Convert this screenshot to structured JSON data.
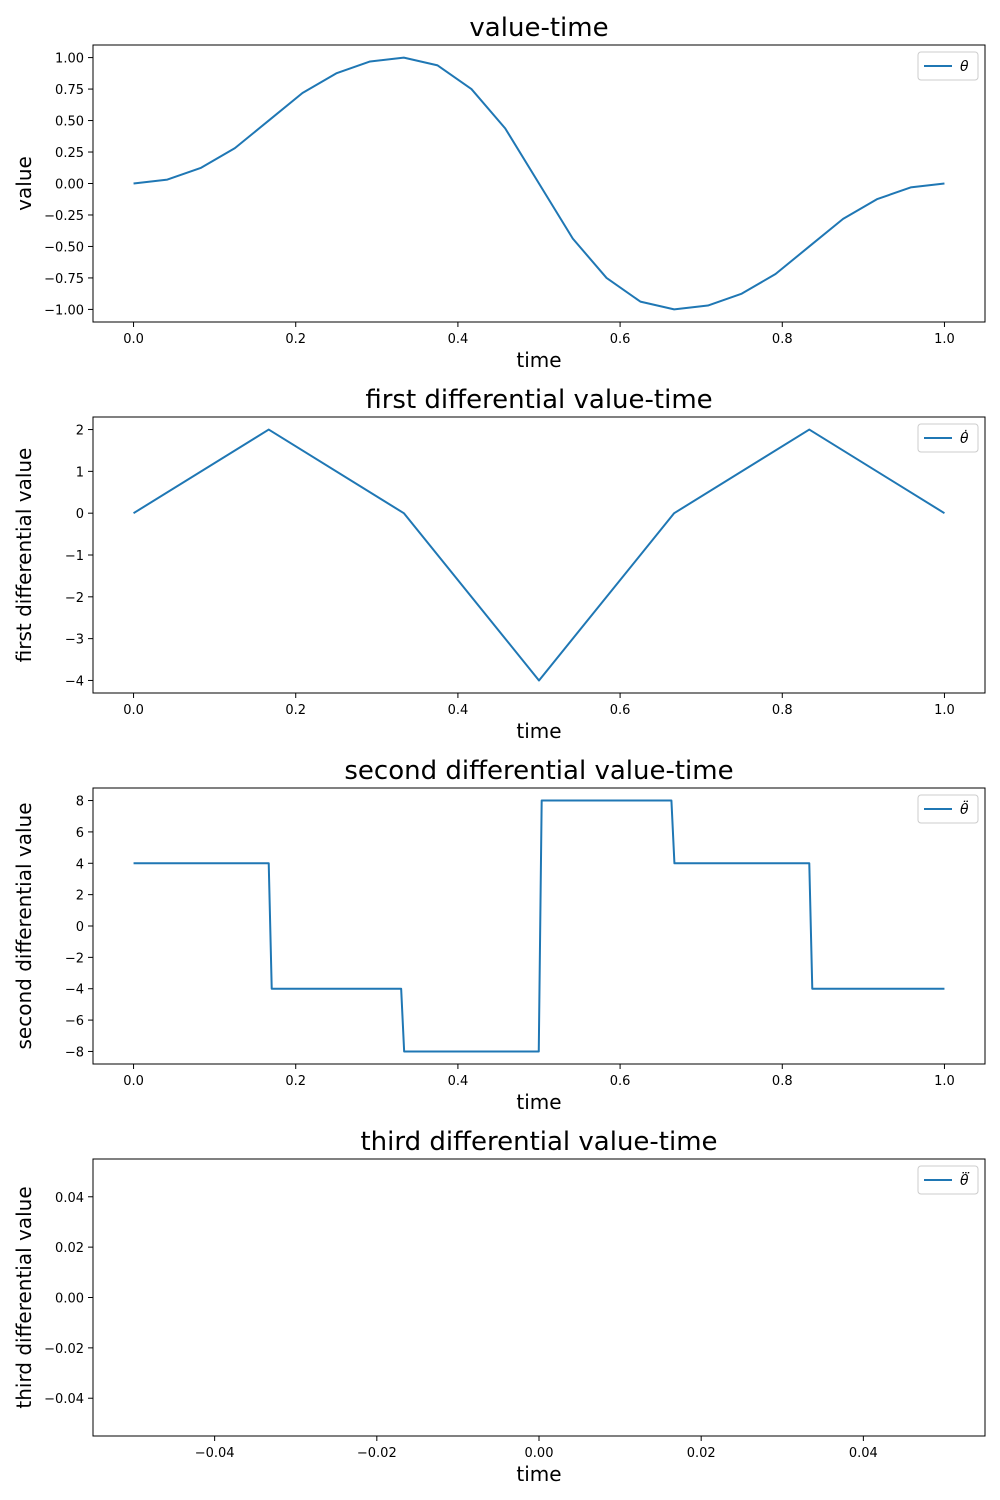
{
  "chart_data": [
    {
      "type": "line",
      "title": "value-time",
      "xlabel": "time",
      "ylabel": "value",
      "xlim": [
        -0.05,
        1.05
      ],
      "ylim": [
        -1.1,
        1.1
      ],
      "xticks": [
        0.0,
        0.2,
        0.4,
        0.6,
        0.8,
        1.0
      ],
      "xtick_labels": [
        "0.0",
        "0.2",
        "0.4",
        "0.6",
        "0.8",
        "1.0"
      ],
      "yticks": [
        1.0,
        0.75,
        0.5,
        0.25,
        0.0,
        -0.25,
        -0.5,
        -0.75,
        -1.0
      ],
      "ytick_labels": [
        "1.00",
        "0.75",
        "0.50",
        "0.25",
        "0.00",
        "−0.25",
        "−0.50",
        "−0.75",
        "−1.00"
      ],
      "legend_position": "top-right",
      "series": [
        {
          "name": "θ",
          "color": "#1f77b4",
          "x": [
            0,
            0.0417,
            0.0833,
            0.125,
            0.1667,
            0.2083,
            0.25,
            0.2917,
            0.3333,
            0.375,
            0.4167,
            0.4583,
            0.5,
            0.5417,
            0.5833,
            0.625,
            0.6667,
            0.7083,
            0.75,
            0.7917,
            0.8333,
            0.875,
            0.9167,
            0.9583,
            1.0
          ],
          "y": [
            0,
            0.031,
            0.125,
            0.281,
            0.5,
            0.719,
            0.875,
            0.969,
            1.0,
            0.938,
            0.75,
            0.438,
            0,
            -0.438,
            -0.75,
            -0.938,
            -1.0,
            -0.969,
            -0.875,
            -0.719,
            -0.5,
            -0.281,
            -0.125,
            -0.031,
            0
          ]
        }
      ]
    },
    {
      "type": "line",
      "title": "first differential value-time",
      "xlabel": "time",
      "ylabel": "first differential value",
      "xlim": [
        -0.05,
        1.05
      ],
      "ylim": [
        -4.3,
        2.3
      ],
      "xticks": [
        0.0,
        0.2,
        0.4,
        0.6,
        0.8,
        1.0
      ],
      "xtick_labels": [
        "0.0",
        "0.2",
        "0.4",
        "0.6",
        "0.8",
        "1.0"
      ],
      "yticks": [
        2,
        1,
        0,
        -1,
        -2,
        -3,
        -4
      ],
      "ytick_labels": [
        "2",
        "1",
        "0",
        "−1",
        "−2",
        "−3",
        "−4"
      ],
      "legend_position": "top-right",
      "series": [
        {
          "name": "θ̇",
          "color": "#1f77b4",
          "x": [
            0,
            0.1667,
            0.3333,
            0.5,
            0.6667,
            0.8333,
            1.0
          ],
          "y": [
            0,
            2,
            0,
            -4,
            0,
            2,
            0
          ]
        }
      ]
    },
    {
      "type": "line",
      "title": "second differential value-time",
      "xlabel": "time",
      "ylabel": "second differential value",
      "xlim": [
        -0.05,
        1.05
      ],
      "ylim": [
        -8.8,
        8.8
      ],
      "xticks": [
        0.0,
        0.2,
        0.4,
        0.6,
        0.8,
        1.0
      ],
      "xtick_labels": [
        "0.0",
        "0.2",
        "0.4",
        "0.6",
        "0.8",
        "1.0"
      ],
      "yticks": [
        8,
        6,
        4,
        2,
        0,
        -2,
        -4,
        -6,
        -8
      ],
      "ytick_labels": [
        "8",
        "6",
        "4",
        "2",
        "0",
        "−2",
        "−4",
        "−6",
        "−8"
      ],
      "legend_position": "top-right",
      "series": [
        {
          "name": "θ̈",
          "color": "#1f77b4",
          "x": [
            0,
            0.1667,
            0.1704,
            0.33,
            0.3337,
            0.4997,
            0.5033,
            0.6633,
            0.667,
            0.8333,
            0.837,
            1.0
          ],
          "y": [
            4,
            4,
            -4,
            -4,
            -8,
            -8,
            8,
            8,
            4,
            4,
            -4,
            -4
          ]
        }
      ]
    },
    {
      "type": "line",
      "title": "third differential value-time",
      "xlabel": "time",
      "ylabel": "third differential value",
      "xlim": [
        -0.055,
        0.055
      ],
      "ylim": [
        -0.055,
        0.055
      ],
      "xticks": [
        -0.04,
        -0.02,
        0.0,
        0.02,
        0.04
      ],
      "xtick_labels": [
        "−0.04",
        "−0.02",
        "0.00",
        "0.02",
        "0.04"
      ],
      "yticks": [
        0.04,
        0.02,
        0.0,
        -0.02,
        -0.04
      ],
      "ytick_labels": [
        "0.04",
        "0.02",
        "0.00",
        "−0.02",
        "−0.04"
      ],
      "legend_position": "top-right",
      "series": [
        {
          "name": "θ⃛",
          "color": "#1f77b4",
          "x": [],
          "y": []
        }
      ]
    }
  ]
}
